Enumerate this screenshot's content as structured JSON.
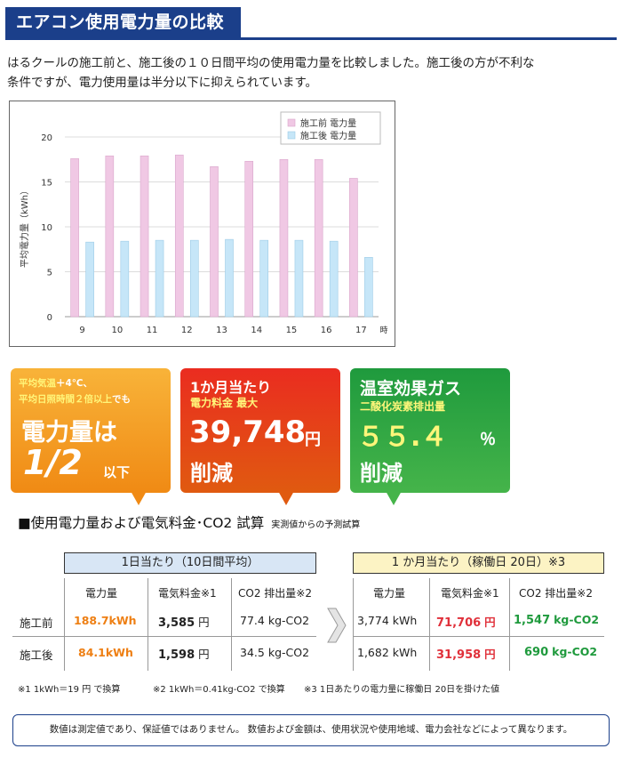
{
  "title": "エアコン使用電力量の比較",
  "intro_line1": "はるクールの施工前と、施工後の１０日間平均の使用電力量を比較しました。施工後の方が不利な",
  "intro_line2": "条件ですが、電力使用量は半分以下に抑えられています。",
  "chart_data": {
    "type": "bar",
    "categories": [
      "9",
      "10",
      "11",
      "12",
      "13",
      "14",
      "15",
      "16",
      "17"
    ],
    "x_unit": "時",
    "ylabel": "平均電力量（kWh）",
    "ylim": [
      0,
      20
    ],
    "yticks": [
      "0",
      "5",
      "10",
      "15",
      "20"
    ],
    "grid": true,
    "legend_position": "top-right",
    "series": [
      {
        "name": "施工前 電力量",
        "color": "#f0c8e4",
        "values": [
          17.6,
          17.9,
          17.9,
          18.0,
          16.7,
          17.3,
          17.5,
          17.5,
          15.4
        ]
      },
      {
        "name": "施工後 電力量",
        "color": "#c6e6f8",
        "values": [
          8.3,
          8.4,
          8.5,
          8.5,
          8.6,
          8.5,
          8.5,
          8.4,
          6.6
        ]
      }
    ]
  },
  "cards": {
    "orange": {
      "line1_a": "平均気温",
      "line1_b": "＋4℃、",
      "line2_a": "平均日照時間２倍以上",
      "line2_b": "でも",
      "big1": "電力量は",
      "big2": "1/2",
      "big2_suffix": "以下"
    },
    "red": {
      "line1": "1か月当たり",
      "line2": "電力料金 最大",
      "amount": "39,748",
      "unit": "円",
      "reduce": "削減"
    },
    "green": {
      "line1": "温室効果ガス",
      "line2": "二酸化炭素排出量",
      "amount": "５５.４",
      "unit": "％",
      "reduce": "削減"
    }
  },
  "section": {
    "title": "■使用電力量および電気料金･CO2 試算",
    "note": "実測値からの予測試算"
  },
  "table_left": {
    "header": "1日当たり（10日間平均）",
    "cols": [
      "電力量",
      "電気料金※1",
      "CO2 排出量※2"
    ],
    "rows": [
      {
        "label": "施工前",
        "power": "188.7kWh",
        "cost": "3,585",
        "cost_unit": "円",
        "co2": "77.4",
        "co2_unit": "kg-CO2"
      },
      {
        "label": "施工後",
        "power": "84.1kWh",
        "cost": "1,598",
        "cost_unit": "円",
        "co2": "34.5",
        "co2_unit": "kg-CO2"
      }
    ]
  },
  "table_right": {
    "header": "1 か月当たり（稼働日 20日）※3",
    "cols": [
      "電力量",
      "電気料金※1",
      "CO2 排出量※2"
    ],
    "rows": [
      {
        "power": "3,774 kWh",
        "cost": "71,706",
        "cost_unit": "円",
        "co2": "1,547",
        "co2_unit": "kg-CO2"
      },
      {
        "power": "1,682 kWh",
        "cost": "31,958",
        "cost_unit": "円",
        "co2": "690",
        "co2_unit": "kg-CO2"
      }
    ]
  },
  "footnotes": {
    "n1": "※1  1kWh＝19 円 で換算",
    "n2": "※2  1kWh＝0.41kg-CO2 で換算",
    "n3": "※3  1日あたりの電力量に稼働日 20日を掛けた値"
  },
  "disclaimer": "数値は測定値であり、保証値ではありません。 数値および金額は、使用状況や使用地域、電力会社などによって異なります。"
}
